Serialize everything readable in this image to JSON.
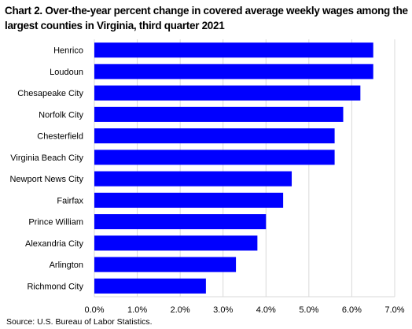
{
  "chart_data": {
    "type": "bar",
    "orientation": "horizontal",
    "title": "Chart 2. Over-the-year percent change in covered average weekly wages among the largest counties in Virginia, third quarter 2021",
    "xlabel": "",
    "ylabel": "",
    "categories": [
      "Henrico",
      "Loudoun",
      "Chesapeake City",
      "Norfolk City",
      "Chesterfield",
      "Virginia Beach City",
      "Newport News City",
      "Fairfax",
      "Prince William",
      "Alexandria City",
      "Arlington",
      "Richmond City"
    ],
    "values": [
      6.5,
      6.5,
      6.2,
      5.8,
      5.6,
      5.6,
      4.6,
      4.4,
      4.0,
      3.8,
      3.3,
      2.6
    ],
    "xlim": [
      0,
      7
    ],
    "x_ticks": [
      0,
      1,
      2,
      3,
      4,
      5,
      6,
      7
    ],
    "x_tick_labels": [
      "0.0%",
      "1.0%",
      "2.0%",
      "3.0%",
      "4.0%",
      "5.0%",
      "6.0%",
      "7.0%"
    ],
    "bar_color": "#0000ff",
    "grid": true,
    "legend": "none"
  },
  "source": "Source:  U.S. Bureau of Labor Statistics."
}
